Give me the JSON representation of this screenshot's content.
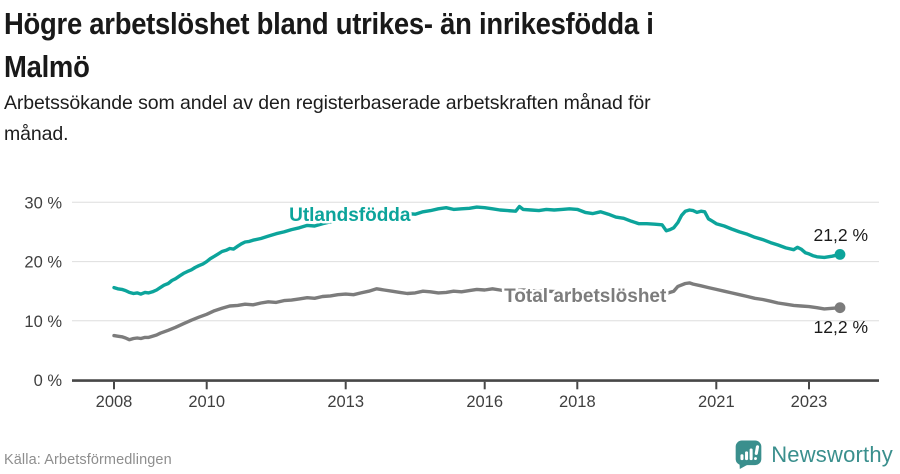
{
  "title": {
    "line1": "Högre arbetslöshet bland utrikes- än inrikesfödda i",
    "line2": "Malmö"
  },
  "subtitle": {
    "line1": "Arbetssökande som andel av den registerbaserade arbetskraften månad för",
    "line2": "månad."
  },
  "source": "Källa: Arbetsförmedlingen",
  "branding": {
    "name": "Newsworthy",
    "color": "#3A8F8D"
  },
  "chart_data": {
    "type": "line",
    "title": "Högre arbetslöshet bland utrikes- än inrikesfödda i Malmö",
    "x_axis": {
      "range": [
        2008,
        2024.5
      ],
      "ticks": [
        2008,
        2010,
        2013,
        2016,
        2018,
        2021,
        2023
      ],
      "tick_labels": [
        "2008",
        "2010",
        "2013",
        "2016",
        "2018",
        "2021",
        "2023"
      ]
    },
    "y_axis": {
      "unit": "%",
      "range": [
        0,
        31
      ],
      "ticks": [
        0,
        10,
        20,
        30
      ],
      "tick_labels": [
        "0 %",
        "10 %",
        "20 %",
        "30 %"
      ]
    },
    "grid": true,
    "legend_position": "inline-labels",
    "style": {
      "grid_color": "#dedede",
      "axis_color": "#474747",
      "tick_label_color": "#3f3f3f",
      "value_label_color": "#1a1a1a"
    },
    "series": [
      {
        "id": "utlandsfodda",
        "name": "Utlandsfödda",
        "color": "#0CA49B",
        "end_value": 21.2,
        "end_label": "21,2 %",
        "end_label_position": "above",
        "label_at": [
          2011.78,
          26.85
        ],
        "points": [
          [
            2008.0,
            15.6
          ],
          [
            2008.08,
            15.4
          ],
          [
            2008.17,
            15.3
          ],
          [
            2008.25,
            15.1
          ],
          [
            2008.33,
            14.8
          ],
          [
            2008.42,
            14.6
          ],
          [
            2008.5,
            14.7
          ],
          [
            2008.58,
            14.5
          ],
          [
            2008.67,
            14.8
          ],
          [
            2008.75,
            14.7
          ],
          [
            2008.83,
            14.9
          ],
          [
            2008.92,
            15.2
          ],
          [
            2009.0,
            15.6
          ],
          [
            2009.08,
            16.0
          ],
          [
            2009.17,
            16.3
          ],
          [
            2009.25,
            16.8
          ],
          [
            2009.33,
            17.1
          ],
          [
            2009.42,
            17.6
          ],
          [
            2009.5,
            18.0
          ],
          [
            2009.58,
            18.3
          ],
          [
            2009.67,
            18.6
          ],
          [
            2009.75,
            19.0
          ],
          [
            2009.83,
            19.3
          ],
          [
            2009.92,
            19.6
          ],
          [
            2010.0,
            20.0
          ],
          [
            2010.08,
            20.5
          ],
          [
            2010.17,
            20.9
          ],
          [
            2010.25,
            21.3
          ],
          [
            2010.33,
            21.7
          ],
          [
            2010.42,
            21.9
          ],
          [
            2010.5,
            22.2
          ],
          [
            2010.58,
            22.1
          ],
          [
            2010.67,
            22.6
          ],
          [
            2010.75,
            23.0
          ],
          [
            2010.83,
            23.3
          ],
          [
            2010.92,
            23.4
          ],
          [
            2011.0,
            23.6
          ],
          [
            2011.17,
            23.9
          ],
          [
            2011.33,
            24.3
          ],
          [
            2011.5,
            24.7
          ],
          [
            2011.67,
            25.0
          ],
          [
            2011.83,
            25.4
          ],
          [
            2012.0,
            25.7
          ],
          [
            2012.17,
            26.1
          ],
          [
            2012.33,
            26.0
          ],
          [
            2012.5,
            26.4
          ],
          [
            2012.67,
            26.7
          ],
          [
            2012.83,
            27.0
          ],
          [
            2013.0,
            27.2
          ],
          [
            2013.17,
            27.0
          ],
          [
            2013.33,
            27.4
          ],
          [
            2013.5,
            27.3
          ],
          [
            2013.67,
            27.6
          ],
          [
            2013.83,
            27.5
          ],
          [
            2014.0,
            27.9
          ],
          [
            2014.17,
            27.7
          ],
          [
            2014.33,
            28.1
          ],
          [
            2014.5,
            28.0
          ],
          [
            2014.67,
            28.4
          ],
          [
            2014.83,
            28.6
          ],
          [
            2015.0,
            28.9
          ],
          [
            2015.17,
            29.1
          ],
          [
            2015.33,
            28.8
          ],
          [
            2015.5,
            28.9
          ],
          [
            2015.67,
            29.0
          ],
          [
            2015.83,
            29.2
          ],
          [
            2016.0,
            29.1
          ],
          [
            2016.17,
            28.9
          ],
          [
            2016.33,
            28.7
          ],
          [
            2016.5,
            28.6
          ],
          [
            2016.67,
            28.5
          ],
          [
            2016.75,
            29.3
          ],
          [
            2016.83,
            28.8
          ],
          [
            2017.0,
            28.7
          ],
          [
            2017.17,
            28.6
          ],
          [
            2017.33,
            28.8
          ],
          [
            2017.5,
            28.7
          ],
          [
            2017.67,
            28.8
          ],
          [
            2017.83,
            28.9
          ],
          [
            2018.0,
            28.8
          ],
          [
            2018.17,
            28.3
          ],
          [
            2018.33,
            28.1
          ],
          [
            2018.5,
            28.4
          ],
          [
            2018.67,
            28.0
          ],
          [
            2018.83,
            27.5
          ],
          [
            2019.0,
            27.3
          ],
          [
            2019.17,
            26.8
          ],
          [
            2019.33,
            26.4
          ],
          [
            2019.5,
            26.4
          ],
          [
            2019.67,
            26.3
          ],
          [
            2019.83,
            26.2
          ],
          [
            2019.92,
            25.2
          ],
          [
            2020.0,
            25.4
          ],
          [
            2020.08,
            25.7
          ],
          [
            2020.17,
            26.6
          ],
          [
            2020.25,
            27.8
          ],
          [
            2020.33,
            28.5
          ],
          [
            2020.42,
            28.7
          ],
          [
            2020.5,
            28.6
          ],
          [
            2020.58,
            28.3
          ],
          [
            2020.67,
            28.5
          ],
          [
            2020.75,
            28.4
          ],
          [
            2020.83,
            27.2
          ],
          [
            2020.92,
            26.8
          ],
          [
            2021.0,
            26.4
          ],
          [
            2021.17,
            26.0
          ],
          [
            2021.33,
            25.5
          ],
          [
            2021.5,
            25.0
          ],
          [
            2021.67,
            24.6
          ],
          [
            2021.83,
            24.1
          ],
          [
            2022.0,
            23.7
          ],
          [
            2022.17,
            23.2
          ],
          [
            2022.33,
            22.8
          ],
          [
            2022.5,
            22.3
          ],
          [
            2022.67,
            22.0
          ],
          [
            2022.75,
            22.4
          ],
          [
            2022.83,
            22.1
          ],
          [
            2022.92,
            21.5
          ],
          [
            2023.0,
            21.3
          ],
          [
            2023.08,
            21.0
          ],
          [
            2023.17,
            20.8
          ],
          [
            2023.33,
            20.7
          ],
          [
            2023.5,
            20.9
          ],
          [
            2023.67,
            21.2
          ]
        ]
      },
      {
        "id": "total-arbetsloshet",
        "name": "Total arbetslöshet",
        "color": "#7c7c7c",
        "end_value": 12.2,
        "end_label": "12,2 %",
        "end_label_position": "below",
        "label_at": [
          2016.42,
          13.17
        ],
        "points": [
          [
            2008.0,
            7.5
          ],
          [
            2008.08,
            7.4
          ],
          [
            2008.17,
            7.3
          ],
          [
            2008.25,
            7.1
          ],
          [
            2008.33,
            6.8
          ],
          [
            2008.42,
            7.0
          ],
          [
            2008.5,
            7.1
          ],
          [
            2008.58,
            7.0
          ],
          [
            2008.67,
            7.2
          ],
          [
            2008.75,
            7.2
          ],
          [
            2008.83,
            7.4
          ],
          [
            2008.92,
            7.6
          ],
          [
            2009.0,
            7.9
          ],
          [
            2009.17,
            8.4
          ],
          [
            2009.33,
            8.9
          ],
          [
            2009.5,
            9.5
          ],
          [
            2009.67,
            10.1
          ],
          [
            2009.83,
            10.6
          ],
          [
            2010.0,
            11.1
          ],
          [
            2010.17,
            11.7
          ],
          [
            2010.33,
            12.1
          ],
          [
            2010.5,
            12.5
          ],
          [
            2010.67,
            12.6
          ],
          [
            2010.83,
            12.8
          ],
          [
            2011.0,
            12.7
          ],
          [
            2011.17,
            13.0
          ],
          [
            2011.33,
            13.2
          ],
          [
            2011.5,
            13.1
          ],
          [
            2011.67,
            13.4
          ],
          [
            2011.83,
            13.5
          ],
          [
            2012.0,
            13.7
          ],
          [
            2012.17,
            13.9
          ],
          [
            2012.33,
            13.8
          ],
          [
            2012.5,
            14.1
          ],
          [
            2012.67,
            14.2
          ],
          [
            2012.83,
            14.4
          ],
          [
            2013.0,
            14.5
          ],
          [
            2013.17,
            14.4
          ],
          [
            2013.33,
            14.7
          ],
          [
            2013.5,
            15.0
          ],
          [
            2013.67,
            15.4
          ],
          [
            2013.83,
            15.2
          ],
          [
            2014.0,
            15.0
          ],
          [
            2014.17,
            14.8
          ],
          [
            2014.33,
            14.6
          ],
          [
            2014.5,
            14.7
          ],
          [
            2014.67,
            15.0
          ],
          [
            2014.83,
            14.9
          ],
          [
            2015.0,
            14.7
          ],
          [
            2015.17,
            14.8
          ],
          [
            2015.33,
            15.0
          ],
          [
            2015.5,
            14.9
          ],
          [
            2015.67,
            15.1
          ],
          [
            2015.83,
            15.3
          ],
          [
            2016.0,
            15.2
          ],
          [
            2016.17,
            15.4
          ],
          [
            2016.33,
            15.2
          ],
          [
            2016.5,
            15.0
          ],
          [
            2016.67,
            15.1
          ],
          [
            2016.83,
            15.2
          ],
          [
            2017.0,
            15.1
          ],
          [
            2017.33,
            15.0
          ],
          [
            2017.67,
            14.9
          ],
          [
            2018.0,
            14.9
          ],
          [
            2018.33,
            14.7
          ],
          [
            2018.67,
            14.5
          ],
          [
            2019.0,
            14.4
          ],
          [
            2019.33,
            14.3
          ],
          [
            2019.67,
            14.4
          ],
          [
            2019.92,
            14.6
          ],
          [
            2020.08,
            15.0
          ],
          [
            2020.17,
            15.8
          ],
          [
            2020.33,
            16.3
          ],
          [
            2020.42,
            16.4
          ],
          [
            2020.5,
            16.2
          ],
          [
            2020.67,
            15.9
          ],
          [
            2020.83,
            15.6
          ],
          [
            2021.0,
            15.3
          ],
          [
            2021.17,
            15.0
          ],
          [
            2021.33,
            14.7
          ],
          [
            2021.5,
            14.4
          ],
          [
            2021.67,
            14.1
          ],
          [
            2021.83,
            13.8
          ],
          [
            2022.0,
            13.6
          ],
          [
            2022.17,
            13.3
          ],
          [
            2022.33,
            13.0
          ],
          [
            2022.5,
            12.8
          ],
          [
            2022.67,
            12.6
          ],
          [
            2022.83,
            12.5
          ],
          [
            2023.0,
            12.4
          ],
          [
            2023.17,
            12.2
          ],
          [
            2023.33,
            12.0
          ],
          [
            2023.5,
            12.1
          ],
          [
            2023.67,
            12.2
          ]
        ]
      }
    ]
  }
}
